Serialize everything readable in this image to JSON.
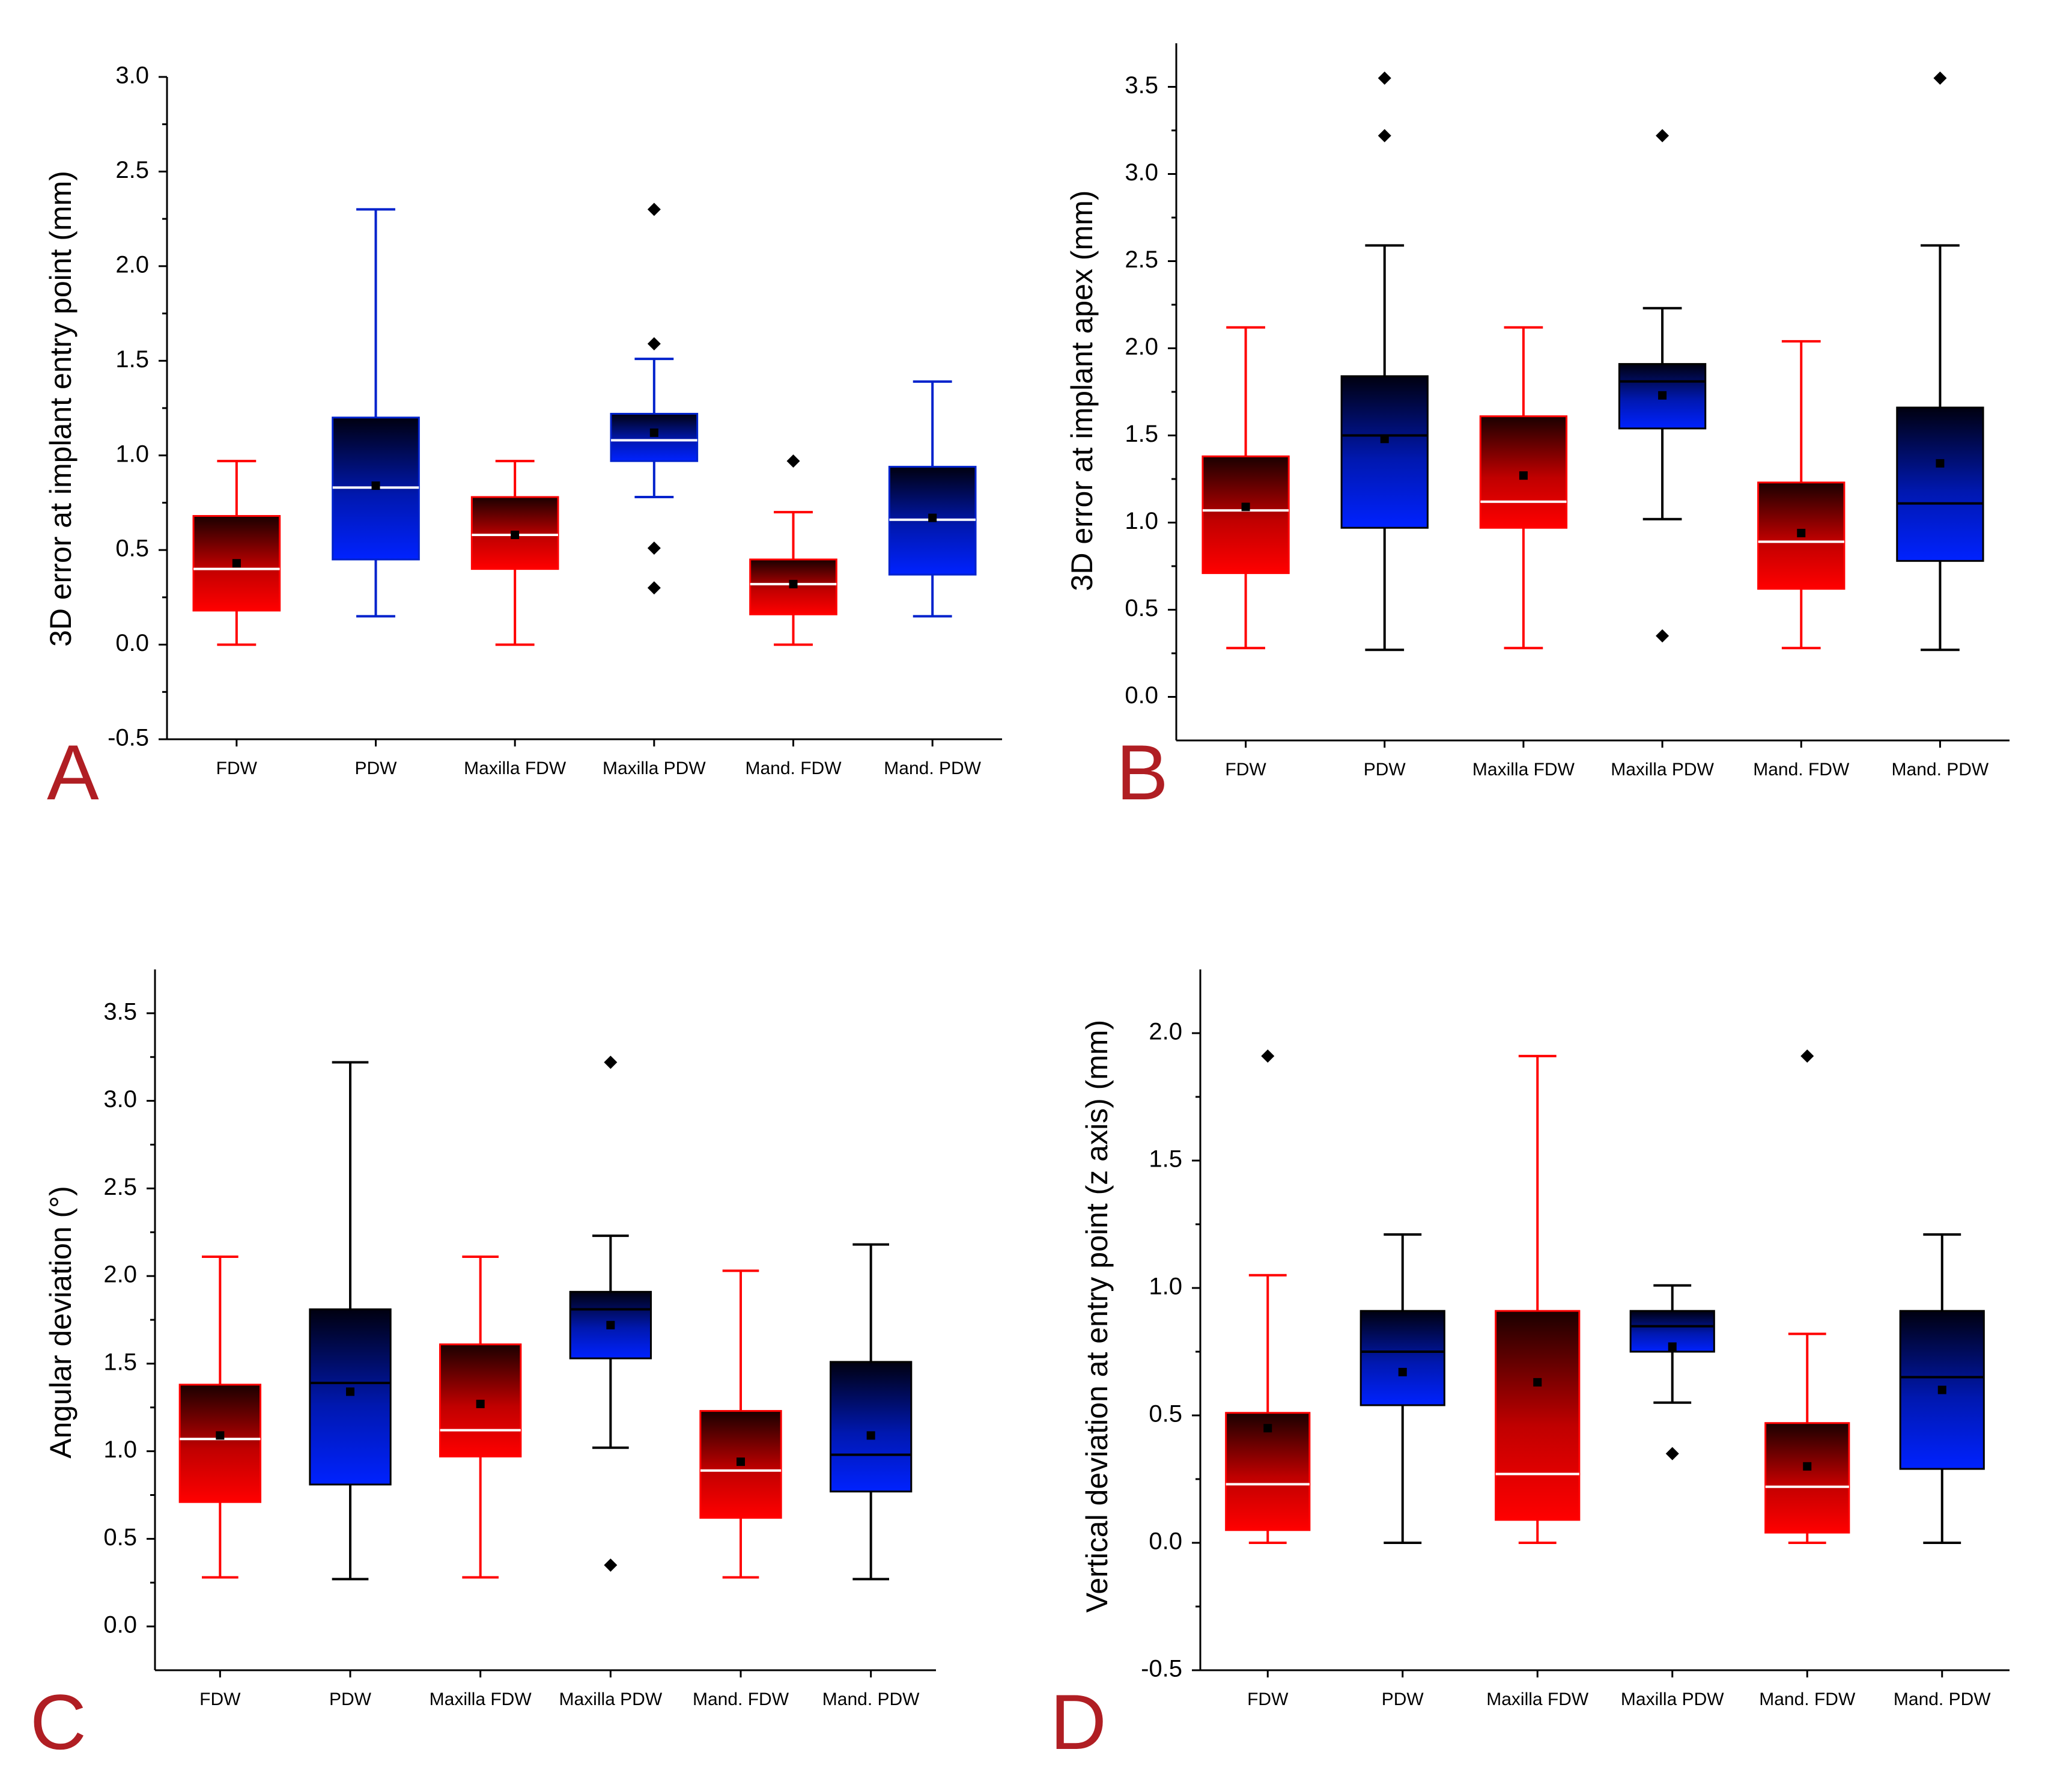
{
  "figure": {
    "panel_letters": [
      "A",
      "B",
      "C",
      "D"
    ],
    "colors": {
      "red_group": "#ff0000",
      "blue_group": "#0022ff",
      "dark": "#000000",
      "panel_letter": "#b01e23"
    }
  },
  "chart_data": [
    {
      "type": "box",
      "panel": "A",
      "title": "",
      "xlabel": "",
      "ylabel": "3D error at implant entry point (mm)",
      "ylim": [
        -0.5,
        3.0
      ],
      "yticks": [
        "-0.5",
        "0.0",
        "0.5",
        "1.0",
        "1.5",
        "2.0",
        "2.5",
        "3.0"
      ],
      "categories": [
        "FDW",
        "PDW",
        "Maxilla FDW",
        "Maxilla PDW",
        "Mand. FDW",
        "Mand. PDW"
      ],
      "series": [
        {
          "name": "FDW",
          "color": "red",
          "whisker_color": "#ff0000",
          "median_color": "#ffffff",
          "min": 0.0,
          "q1": 0.18,
          "median": 0.4,
          "q3": 0.68,
          "max": 0.97,
          "mean": 0.43,
          "outliers": []
        },
        {
          "name": "PDW",
          "color": "blue",
          "whisker_color": "#0022cc",
          "median_color": "#ffffff",
          "min": 0.15,
          "q1": 0.45,
          "median": 0.83,
          "q3": 1.2,
          "max": 2.3,
          "mean": 0.84,
          "outliers": []
        },
        {
          "name": "Maxilla FDW",
          "color": "red",
          "whisker_color": "#ff0000",
          "median_color": "#ffffff",
          "min": 0.0,
          "q1": 0.4,
          "median": 0.58,
          "q3": 0.78,
          "max": 0.97,
          "mean": 0.58,
          "outliers": []
        },
        {
          "name": "Maxilla PDW",
          "color": "blue",
          "whisker_color": "#0022cc",
          "median_color": "#ffffff",
          "min": 0.78,
          "q1": 0.97,
          "median": 1.08,
          "q3": 1.22,
          "max": 1.51,
          "mean": 1.12,
          "outliers": [
            2.3,
            1.59,
            0.51,
            0.3
          ]
        },
        {
          "name": "Mand. FDW",
          "color": "red",
          "whisker_color": "#ff0000",
          "median_color": "#ffffff",
          "min": 0.0,
          "q1": 0.16,
          "median": 0.32,
          "q3": 0.45,
          "max": 0.7,
          "mean": 0.32,
          "outliers": [
            0.97
          ]
        },
        {
          "name": "Mand. PDW",
          "color": "blue",
          "whisker_color": "#0022cc",
          "median_color": "#ffffff",
          "min": 0.15,
          "q1": 0.37,
          "median": 0.66,
          "q3": 0.94,
          "max": 1.39,
          "mean": 0.67,
          "outliers": []
        }
      ]
    },
    {
      "type": "box",
      "panel": "B",
      "title": "",
      "xlabel": "",
      "ylabel": "3D error at implant apex (mm)",
      "ylim": [
        -0.25,
        3.75
      ],
      "yticks": [
        "0.0",
        "0.5",
        "1.0",
        "1.5",
        "2.0",
        "2.5",
        "3.0",
        "3.5"
      ],
      "categories": [
        "FDW",
        "PDW",
        "Maxilla FDW",
        "Maxilla PDW",
        "Mand. FDW",
        "Mand. PDW"
      ],
      "series": [
        {
          "name": "FDW",
          "color": "red",
          "whisker_color": "#ff0000",
          "median_color": "#ffffff",
          "min": 0.28,
          "q1": 0.71,
          "median": 1.07,
          "q3": 1.38,
          "max": 2.12,
          "mean": 1.09,
          "outliers": []
        },
        {
          "name": "PDW",
          "color": "blue",
          "whisker_color": "#000000",
          "median_color": "#000000",
          "min": 0.27,
          "q1": 0.97,
          "median": 1.5,
          "q3": 1.84,
          "max": 2.59,
          "mean": 1.48,
          "outliers": [
            3.55,
            3.22
          ]
        },
        {
          "name": "Maxilla FDW",
          "color": "red",
          "whisker_color": "#ff0000",
          "median_color": "#ffffff",
          "min": 0.28,
          "q1": 0.97,
          "median": 1.12,
          "q3": 1.61,
          "max": 2.12,
          "mean": 1.27,
          "outliers": []
        },
        {
          "name": "Maxilla PDW",
          "color": "blue",
          "whisker_color": "#000000",
          "median_color": "#000000",
          "min": 1.02,
          "q1": 1.54,
          "median": 1.81,
          "q3": 1.91,
          "max": 2.23,
          "mean": 1.73,
          "outliers": [
            3.22,
            0.35
          ]
        },
        {
          "name": "Mand. FDW",
          "color": "red",
          "whisker_color": "#ff0000",
          "median_color": "#ffffff",
          "min": 0.28,
          "q1": 0.62,
          "median": 0.89,
          "q3": 1.23,
          "max": 2.04,
          "mean": 0.94,
          "outliers": []
        },
        {
          "name": "Mand. PDW",
          "color": "blue",
          "whisker_color": "#000000",
          "median_color": "#000000",
          "min": 0.27,
          "q1": 0.78,
          "median": 1.11,
          "q3": 1.66,
          "max": 2.59,
          "mean": 1.34,
          "outliers": [
            3.55
          ]
        }
      ]
    },
    {
      "type": "box",
      "panel": "C",
      "title": "",
      "xlabel": "",
      "ylabel": "Angular deviation (°)",
      "ylim": [
        -0.25,
        3.75
      ],
      "yticks": [
        "0.0",
        "0.5",
        "1.0",
        "1.5",
        "2.0",
        "2.5",
        "3.0",
        "3.5"
      ],
      "categories": [
        "FDW",
        "PDW",
        "Maxilla FDW",
        "Maxilla PDW",
        "Mand. FDW",
        "Mand. PDW"
      ],
      "series": [
        {
          "name": "FDW",
          "color": "red",
          "whisker_color": "#ff0000",
          "median_color": "#ffffff",
          "min": 0.28,
          "q1": 0.71,
          "median": 1.07,
          "q3": 1.38,
          "max": 2.11,
          "mean": 1.09,
          "outliers": []
        },
        {
          "name": "PDW",
          "color": "blue",
          "whisker_color": "#000000",
          "median_color": "#000000",
          "min": 0.27,
          "q1": 0.81,
          "median": 1.39,
          "q3": 1.81,
          "max": 3.22,
          "mean": 1.34,
          "outliers": []
        },
        {
          "name": "Maxilla FDW",
          "color": "red",
          "whisker_color": "#ff0000",
          "median_color": "#ffffff",
          "min": 0.28,
          "q1": 0.97,
          "median": 1.12,
          "q3": 1.61,
          "max": 2.11,
          "mean": 1.27,
          "outliers": []
        },
        {
          "name": "Maxilla PDW",
          "color": "blue",
          "whisker_color": "#000000",
          "median_color": "#000000",
          "min": 1.02,
          "q1": 1.53,
          "median": 1.81,
          "q3": 1.91,
          "max": 2.23,
          "mean": 1.72,
          "outliers": [
            3.22,
            0.35
          ]
        },
        {
          "name": "Mand. FDW",
          "color": "red",
          "whisker_color": "#ff0000",
          "median_color": "#ffffff",
          "min": 0.28,
          "q1": 0.62,
          "median": 0.89,
          "q3": 1.23,
          "max": 2.03,
          "mean": 0.94,
          "outliers": []
        },
        {
          "name": "Mand. PDW",
          "color": "blue",
          "whisker_color": "#000000",
          "median_color": "#000000",
          "min": 0.27,
          "q1": 0.77,
          "median": 0.98,
          "q3": 1.51,
          "max": 2.18,
          "mean": 1.09,
          "outliers": []
        }
      ]
    },
    {
      "type": "box",
      "panel": "D",
      "title": "",
      "xlabel": "",
      "ylabel": "Vertical deviation at entry point (z axis) (mm)",
      "ylim": [
        -0.5,
        2.25
      ],
      "yticks": [
        "-0.5",
        "0.0",
        "0.5",
        "1.0",
        "1.5",
        "2.0"
      ],
      "categories": [
        "FDW",
        "PDW",
        "Maxilla FDW",
        "Maxilla PDW",
        "Mand. FDW",
        "Mand. PDW"
      ],
      "series": [
        {
          "name": "FDW",
          "color": "red",
          "whisker_color": "#ff0000",
          "median_color": "#ffffff",
          "min": 0.0,
          "q1": 0.05,
          "median": 0.23,
          "q3": 0.51,
          "max": 1.05,
          "mean": 0.45,
          "outliers": [
            1.91
          ]
        },
        {
          "name": "PDW",
          "color": "blue",
          "whisker_color": "#000000",
          "median_color": "#000000",
          "min": 0.0,
          "q1": 0.54,
          "median": 0.75,
          "q3": 0.91,
          "max": 1.21,
          "mean": 0.67,
          "outliers": []
        },
        {
          "name": "Maxilla FDW",
          "color": "red",
          "whisker_color": "#ff0000",
          "median_color": "#ffffff",
          "min": 0.0,
          "q1": 0.09,
          "median": 0.27,
          "q3": 0.91,
          "max": 1.91,
          "mean": 0.63,
          "outliers": []
        },
        {
          "name": "Maxilla PDW",
          "color": "blue",
          "whisker_color": "#000000",
          "median_color": "#000000",
          "min": 0.55,
          "q1": 0.75,
          "median": 0.85,
          "q3": 0.91,
          "max": 1.01,
          "mean": 0.77,
          "outliers": [
            0.35
          ]
        },
        {
          "name": "Mand. FDW",
          "color": "red",
          "whisker_color": "#ff0000",
          "median_color": "#ffffff",
          "min": 0.0,
          "q1": 0.04,
          "median": 0.22,
          "q3": 0.47,
          "max": 0.82,
          "mean": 0.3,
          "outliers": [
            1.91
          ]
        },
        {
          "name": "Mand. PDW",
          "color": "blue",
          "whisker_color": "#000000",
          "median_color": "#000000",
          "min": 0.0,
          "q1": 0.29,
          "median": 0.65,
          "q3": 0.91,
          "max": 1.21,
          "mean": 0.6,
          "outliers": []
        }
      ]
    }
  ]
}
